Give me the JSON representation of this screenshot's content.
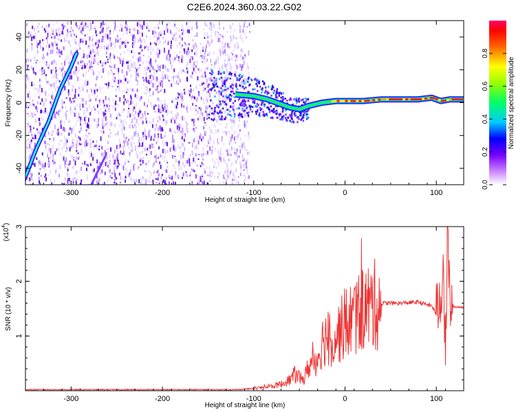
{
  "title": "C2E6.2024.360.03.22.G02",
  "chart_data": [
    {
      "type": "heatmap",
      "xlabel": "Height of straight line (km)",
      "ylabel": "Frequency (Hz)",
      "xlim": [
        -350,
        130
      ],
      "ylim": [
        -50,
        50
      ],
      "xticks": [
        -300,
        -200,
        -100,
        0,
        100
      ],
      "yticks": [
        -40,
        -20,
        0,
        20,
        40
      ],
      "colorbar": {
        "label": "Normalized spectral amplitude",
        "range": [
          0.0,
          1.0
        ],
        "ticks": [
          "0.0",
          "0.2",
          "0.4",
          "0.6",
          "0.8"
        ],
        "colormap": "rainbow (white-violet-blue-cyan-green-yellow-orange-red-magenta)"
      },
      "features": {
        "diagonal_streak_main": {
          "x": [
            -352,
            -338,
            -325,
            -312,
            -300,
            -294
          ],
          "y": [
            -48,
            -28,
            -12,
            8,
            22,
            30
          ]
        },
        "diagonal_streak_faint": {
          "x": [
            -278,
            -262
          ],
          "y": [
            -50,
            -32
          ]
        },
        "carrier_track": {
          "x": [
            -120,
            -100,
            -85,
            -70,
            -60,
            -50,
            -40,
            -25,
            -10,
            0,
            20,
            40,
            60,
            80,
            95,
            105,
            115,
            130
          ],
          "y": [
            5,
            4,
            2,
            -1,
            -3,
            -4,
            -2,
            0,
            1,
            1,
            1,
            2,
            2,
            2,
            3,
            1,
            2,
            2
          ]
        },
        "noise_region_x": [
          -350,
          -110
        ]
      }
    },
    {
      "type": "line",
      "xlabel": "Height of straight line (km)",
      "ylabel": "SNR (10 * v/v)",
      "scale_note": "(x10",
      "scale_exp": "4",
      "xlim": [
        -350,
        130
      ],
      "ylim": [
        0,
        3
      ],
      "xticks": [
        -300,
        -200,
        -100,
        0,
        100
      ],
      "yticks": [
        1,
        2,
        3
      ],
      "series": [
        {
          "color": "#ee3333",
          "x": [
            -350,
            -300,
            -200,
            -120,
            -100,
            -90,
            -80,
            -70,
            -60,
            -55,
            -50,
            -45,
            -40,
            -35,
            -30,
            -25,
            -20,
            -15,
            -10,
            -5,
            0,
            10,
            20,
            30,
            40,
            60,
            80,
            95,
            100,
            105,
            108,
            110,
            112,
            115,
            120,
            130
          ],
          "y": [
            0.02,
            0.02,
            0.02,
            0.02,
            0.04,
            0.06,
            0.08,
            0.12,
            0.2,
            0.3,
            0.25,
            0.2,
            0.45,
            0.5,
            0.6,
            0.9,
            1.0,
            0.9,
            1.0,
            1.1,
            1.2,
            1.35,
            1.5,
            1.55,
            1.6,
            1.6,
            1.62,
            1.55,
            1.4,
            1.8,
            2.3,
            0.3,
            2.9,
            1.6,
            1.53,
            1.53
          ]
        }
      ]
    }
  ]
}
